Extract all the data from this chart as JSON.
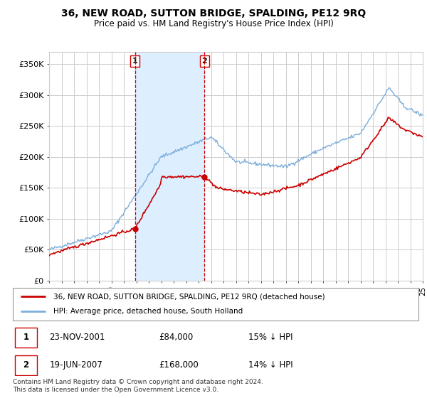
{
  "title": "36, NEW ROAD, SUTTON BRIDGE, SPALDING, PE12 9RQ",
  "subtitle": "Price paid vs. HM Land Registry's House Price Index (HPI)",
  "ylim": [
    0,
    370000
  ],
  "yticks": [
    0,
    50000,
    100000,
    150000,
    200000,
    250000,
    300000,
    350000
  ],
  "ytick_labels": [
    "£0",
    "£50K",
    "£100K",
    "£150K",
    "£200K",
    "£250K",
    "£300K",
    "£350K"
  ],
  "background_color": "#ffffff",
  "grid_color": "#cccccc",
  "sale1": {
    "date_num": 2001.9,
    "price": 84000,
    "label": "1",
    "date_str": "23-NOV-2001",
    "price_str": "£84,000",
    "pct": "15% ↓ HPI"
  },
  "sale2": {
    "date_num": 2007.47,
    "price": 168000,
    "label": "2",
    "date_str": "19-JUN-2007",
    "price_str": "£168,000",
    "pct": "14% ↓ HPI"
  },
  "shade_color": "#ddeeff",
  "vline_color": "#cc0000",
  "legend_label1": "36, NEW ROAD, SUTTON BRIDGE, SPALDING, PE12 9RQ (detached house)",
  "legend_label2": "HPI: Average price, detached house, South Holland",
  "line1_color": "#cc0000",
  "line2_color": "#7aaddb",
  "footer": "Contains HM Land Registry data © Crown copyright and database right 2024.\nThis data is licensed under the Open Government Licence v3.0.",
  "table_rows": [
    {
      "num": "1",
      "date": "23-NOV-2001",
      "price": "£84,000",
      "pct": "15% ↓ HPI"
    },
    {
      "num": "2",
      "date": "19-JUN-2007",
      "price": "£168,000",
      "pct": "14% ↓ HPI"
    }
  ]
}
